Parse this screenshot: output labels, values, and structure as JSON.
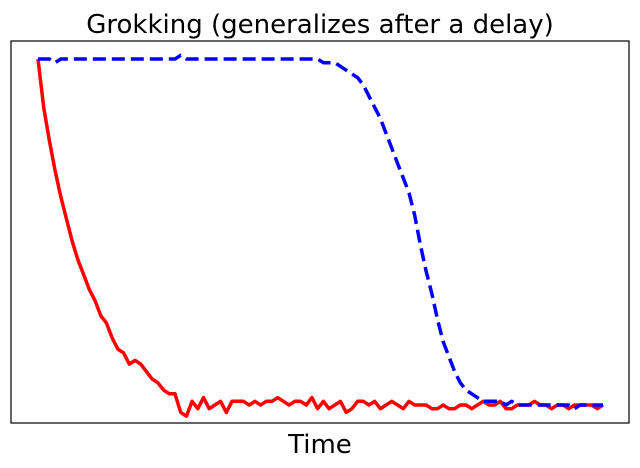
{
  "chart_data": {
    "type": "line",
    "title": "Grokking (generalizes after a delay)",
    "xlabel": "Time",
    "ylabel": "",
    "xlim": [
      0,
      99
    ],
    "ylim": [
      -0.06,
      1.06
    ],
    "grid": false,
    "legend": "none",
    "x_ticks_visible": false,
    "y_ticks_visible": false,
    "series": [
      {
        "color": "#ff0000",
        "style": "solid",
        "x": [
          0,
          1,
          2,
          3,
          4,
          5,
          6,
          7,
          8,
          9,
          10,
          11,
          12,
          13,
          14,
          15,
          16,
          17,
          18,
          19,
          20,
          21,
          22,
          23,
          24,
          25,
          26,
          27,
          28,
          29,
          30,
          31,
          32,
          33,
          34,
          35,
          36,
          37,
          38,
          39,
          40,
          41,
          42,
          43,
          44,
          45,
          46,
          47,
          48,
          49,
          50,
          51,
          52,
          53,
          54,
          55,
          56,
          57,
          58,
          59,
          60,
          61,
          62,
          63,
          64,
          65,
          66,
          67,
          68,
          69,
          70,
          71,
          72,
          73,
          74,
          75,
          76,
          77,
          78,
          79,
          80,
          81,
          82,
          83,
          84,
          85,
          86,
          87,
          88,
          89,
          90,
          91,
          92,
          93,
          94,
          95,
          96,
          97,
          98,
          99
        ],
        "values": [
          1.0,
          0.87,
          0.78,
          0.7,
          0.63,
          0.57,
          0.51,
          0.46,
          0.42,
          0.38,
          0.35,
          0.31,
          0.29,
          0.25,
          0.22,
          0.21,
          0.18,
          0.19,
          0.18,
          0.16,
          0.14,
          0.13,
          0.11,
          0.1,
          0.1,
          0.05,
          0.04,
          0.08,
          0.06,
          0.09,
          0.06,
          0.07,
          0.08,
          0.05,
          0.08,
          0.08,
          0.08,
          0.07,
          0.08,
          0.07,
          0.08,
          0.08,
          0.09,
          0.08,
          0.07,
          0.08,
          0.08,
          0.07,
          0.09,
          0.06,
          0.08,
          0.06,
          0.07,
          0.08,
          0.05,
          0.06,
          0.08,
          0.08,
          0.07,
          0.08,
          0.06,
          0.07,
          0.08,
          0.07,
          0.06,
          0.08,
          0.07,
          0.07,
          0.07,
          0.06,
          0.06,
          0.07,
          0.06,
          0.06,
          0.07,
          0.07,
          0.06,
          0.07,
          0.08,
          0.07,
          0.07,
          0.08,
          0.06,
          0.06,
          0.07,
          0.07,
          0.07,
          0.08,
          0.07,
          0.07,
          0.06,
          0.07,
          0.07,
          0.06,
          0.07,
          0.07,
          0.07,
          0.07,
          0.06,
          0.07
        ]
      },
      {
        "color": "#0000ff",
        "style": "dashed",
        "x": [
          0,
          1,
          2,
          3,
          4,
          5,
          6,
          7,
          8,
          9,
          10,
          11,
          12,
          13,
          14,
          15,
          16,
          17,
          18,
          19,
          20,
          21,
          22,
          23,
          24,
          25,
          26,
          27,
          28,
          29,
          30,
          31,
          32,
          33,
          34,
          35,
          36,
          37,
          38,
          39,
          40,
          41,
          42,
          43,
          44,
          45,
          46,
          47,
          48,
          49,
          50,
          51,
          52,
          53,
          54,
          55,
          56,
          57,
          58,
          59,
          60,
          61,
          62,
          63,
          64,
          65,
          66,
          67,
          68,
          69,
          70,
          71,
          72,
          73,
          74,
          75,
          76,
          77,
          78,
          79,
          80,
          81,
          82,
          83,
          84,
          85,
          86,
          87,
          88,
          89,
          90,
          91,
          92,
          93,
          94,
          95,
          96,
          97,
          98,
          99
        ],
        "values": [
          1.0,
          1.0,
          1.0,
          0.99,
          1.0,
          1.0,
          1.0,
          1.0,
          1.0,
          1.0,
          1.0,
          1.0,
          1.0,
          1.0,
          1.0,
          1.0,
          1.0,
          1.0,
          1.0,
          1.0,
          1.0,
          1.0,
          1.0,
          1.0,
          1.0,
          1.01,
          1.0,
          1.0,
          1.0,
          1.0,
          1.0,
          1.0,
          1.0,
          1.0,
          1.0,
          1.0,
          1.0,
          1.0,
          1.0,
          1.0,
          1.0,
          1.0,
          1.0,
          1.0,
          1.0,
          1.0,
          1.0,
          1.0,
          1.0,
          1.0,
          0.99,
          0.99,
          0.99,
          0.98,
          0.97,
          0.96,
          0.95,
          0.93,
          0.9,
          0.87,
          0.84,
          0.8,
          0.76,
          0.72,
          0.68,
          0.64,
          0.58,
          0.5,
          0.43,
          0.37,
          0.3,
          0.24,
          0.2,
          0.16,
          0.13,
          0.11,
          0.1,
          0.09,
          0.08,
          0.08,
          0.08,
          0.08,
          0.07,
          0.08,
          0.07,
          0.07,
          0.07,
          0.07,
          0.07,
          0.07,
          0.07,
          0.07,
          0.07,
          0.07,
          0.06,
          0.07,
          0.07,
          0.07,
          0.07,
          0.07
        ]
      }
    ]
  }
}
